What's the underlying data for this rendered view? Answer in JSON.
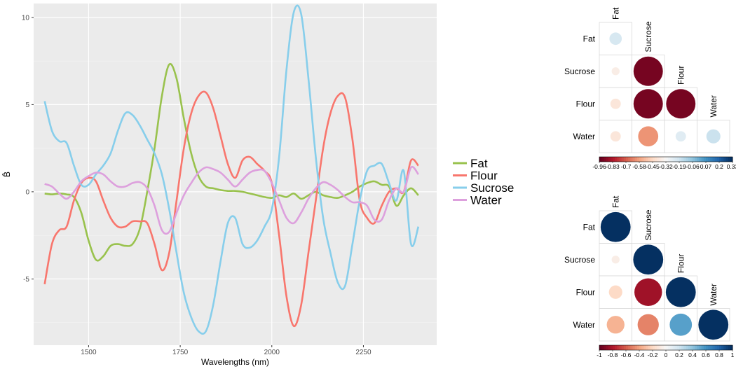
{
  "chart_data": [
    {
      "type": "line",
      "xlabel": "Wavelengths (nm)",
      "ylabel": "B̂",
      "xlim": [
        1350,
        2450
      ],
      "ylim": [
        -8.8,
        10.8
      ],
      "xticks": [
        1500,
        1750,
        2000,
        2250
      ],
      "yticks": [
        -5,
        0,
        5,
        10
      ],
      "grid": true,
      "legend_position": "right",
      "x": [
        1380,
        1400,
        1420,
        1440,
        1460,
        1480,
        1500,
        1520,
        1540,
        1560,
        1580,
        1600,
        1620,
        1640,
        1660,
        1680,
        1700,
        1720,
        1740,
        1760,
        1780,
        1800,
        1820,
        1840,
        1860,
        1880,
        1900,
        1920,
        1940,
        1960,
        1980,
        2000,
        2020,
        2040,
        2060,
        2080,
        2100,
        2120,
        2140,
        2160,
        2180,
        2200,
        2220,
        2240,
        2260,
        2280,
        2300,
        2320,
        2340,
        2360,
        2380,
        2400
      ],
      "series": [
        {
          "name": "Fat",
          "color": "#99C24D",
          "values": [
            -0.1,
            -0.15,
            -0.1,
            -0.15,
            -0.3,
            -1.2,
            -2.8,
            -3.9,
            -3.7,
            -3.1,
            -3.0,
            -3.1,
            -3.0,
            -2.1,
            0.0,
            2.5,
            5.5,
            7.3,
            6.5,
            4.2,
            2.2,
            0.9,
            0.3,
            0.2,
            0.1,
            0.05,
            0.05,
            0.0,
            -0.1,
            -0.2,
            -0.3,
            -0.35,
            -0.2,
            -0.3,
            -0.1,
            -0.4,
            -0.2,
            0.0,
            -0.2,
            -0.3,
            -0.35,
            -0.2,
            0.0,
            0.3,
            0.5,
            0.6,
            0.4,
            0.3,
            -0.8,
            -0.2,
            0.2,
            -0.2
          ]
        },
        {
          "name": "Flour",
          "color": "#F8766D",
          "values": [
            -5.3,
            -3.0,
            -2.2,
            -2.0,
            -0.5,
            0.5,
            0.8,
            0.6,
            -0.5,
            -1.5,
            -2.0,
            -2.0,
            -1.7,
            -1.7,
            -1.8,
            -3.0,
            -4.5,
            -3.5,
            -0.5,
            2.5,
            4.5,
            5.5,
            5.7,
            4.8,
            3.2,
            1.6,
            0.8,
            1.8,
            2.0,
            1.6,
            1.2,
            0.5,
            -2.5,
            -6.0,
            -7.7,
            -6.5,
            -3.5,
            -0.5,
            2.5,
            4.5,
            5.5,
            5.4,
            3.0,
            -0.5,
            -1.5,
            -1.8,
            -0.8,
            0.0,
            0.2,
            0.0,
            1.8,
            1.5
          ]
        },
        {
          "name": "Sucrose",
          "color": "#87CEEB",
          "values": [
            5.2,
            3.5,
            2.9,
            2.8,
            1.5,
            0.4,
            0.4,
            1.0,
            1.5,
            2.2,
            3.5,
            4.5,
            4.4,
            3.8,
            3.0,
            2.2,
            1.0,
            -1.0,
            -3.5,
            -5.8,
            -7.2,
            -8.0,
            -8.0,
            -6.5,
            -4.0,
            -1.8,
            -1.5,
            -3.0,
            -3.2,
            -2.8,
            -2.0,
            -1.0,
            2.0,
            7.0,
            10.3,
            10.2,
            6.5,
            2.0,
            -1.5,
            -3.5,
            -5.2,
            -5.4,
            -3.0,
            -0.5,
            1.2,
            1.5,
            1.6,
            0.5,
            -0.5,
            1.2,
            -3.0,
            -2.0
          ]
        },
        {
          "name": "Water",
          "color": "#DDA0DD",
          "values": [
            0.45,
            0.3,
            -0.1,
            -0.4,
            0.0,
            0.6,
            0.9,
            1.1,
            1.0,
            0.6,
            0.3,
            0.3,
            0.5,
            0.55,
            0.2,
            -0.8,
            -2.2,
            -2.3,
            -1.2,
            -0.2,
            0.5,
            1.1,
            1.4,
            1.3,
            1.1,
            0.7,
            0.3,
            0.7,
            1.1,
            1.25,
            1.2,
            0.5,
            -0.5,
            -1.5,
            -1.8,
            -1.2,
            -0.4,
            0.2,
            0.55,
            0.4,
            0.1,
            -0.3,
            -0.6,
            -0.6,
            -0.8,
            -1.6,
            -1.6,
            -0.5,
            0.2,
            0.0,
            1.4,
            1.0
          ]
        }
      ]
    },
    {
      "type": "heatmap",
      "variables": [
        "Fat",
        "Sucrose",
        "Flour",
        "Water"
      ],
      "matrix": [
        [
          0.17,
          null,
          null,
          null
        ],
        [
          -0.07,
          -0.96,
          null,
          null
        ],
        [
          -0.12,
          -0.96,
          -0.96,
          null
        ],
        [
          -0.12,
          -0.45,
          0.12,
          0.22
        ]
      ],
      "colorbar_ticks": [
        "-0.96",
        "-0.83",
        "-0.7",
        "-0.58",
        "-0.45",
        "-0.32",
        "-0.19",
        "-0.06",
        "0.07",
        "0.2",
        "0.33"
      ]
    },
    {
      "type": "heatmap",
      "variables": [
        "Fat",
        "Sucrose",
        "Flour",
        "Water"
      ],
      "matrix": [
        [
          1.0,
          null,
          null,
          null
        ],
        [
          -0.07,
          1.0,
          null,
          null
        ],
        [
          -0.2,
          -0.85,
          1.0,
          null
        ],
        [
          -0.35,
          -0.5,
          0.55,
          1.0
        ]
      ],
      "colorbar_ticks": [
        "-1",
        "-0.8",
        "-0.6",
        "-0.4",
        "-0.2",
        "0",
        "0.2",
        "0.4",
        "0.6",
        "0.8",
        "1"
      ]
    }
  ]
}
